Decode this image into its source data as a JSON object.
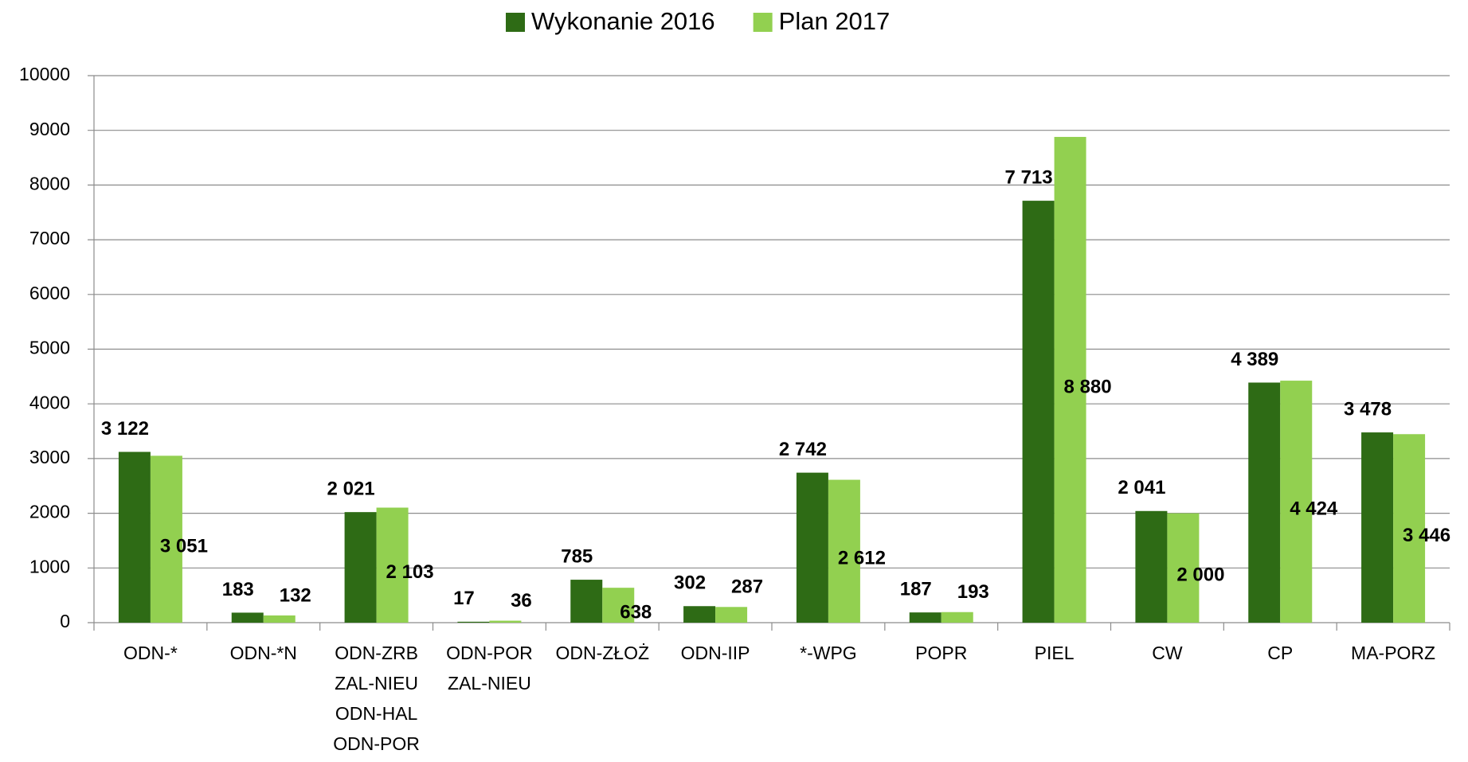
{
  "chart_data": {
    "type": "bar",
    "categories": [
      "ODN-*",
      "ODN-*N",
      [
        "ODN-ZRB",
        "ZAL-NIEU",
        "ODN-HAL",
        "ODN-POR"
      ],
      [
        "ODN-POR",
        "ZAL-NIEU"
      ],
      "ODN-ZŁOŻ",
      "ODN-IIP",
      "*-WPG",
      "POPR",
      "PIEL",
      "CW",
      "CP",
      "MA-PORZ"
    ],
    "series": [
      {
        "name": "Wykonanie 2016",
        "color": "#2e6b15",
        "values": [
          3122,
          183,
          2021,
          17,
          785,
          302,
          2742,
          187,
          7713,
          2041,
          4389,
          3478
        ],
        "value_labels": [
          "3 122",
          "183",
          "2 021",
          "17",
          "785",
          "302",
          "2 742",
          "187",
          "7 713",
          "2 041",
          "4 389",
          "3 478"
        ]
      },
      {
        "name": "Plan 2017",
        "color": "#92d050",
        "values": [
          3051,
          132,
          2103,
          36,
          638,
          287,
          2612,
          193,
          8880,
          2000,
          4424,
          3446
        ],
        "value_labels": [
          "3 051",
          "132",
          "2 103",
          "36",
          "638",
          "287",
          "2 612",
          "193",
          "8 880",
          "2 000",
          "4 424",
          "3 446"
        ]
      }
    ],
    "ylim": [
      0,
      10000
    ],
    "yticks": [
      0,
      1000,
      2000,
      3000,
      4000,
      5000,
      6000,
      7000,
      8000,
      9000,
      10000
    ],
    "grid": true,
    "legend": "top"
  }
}
